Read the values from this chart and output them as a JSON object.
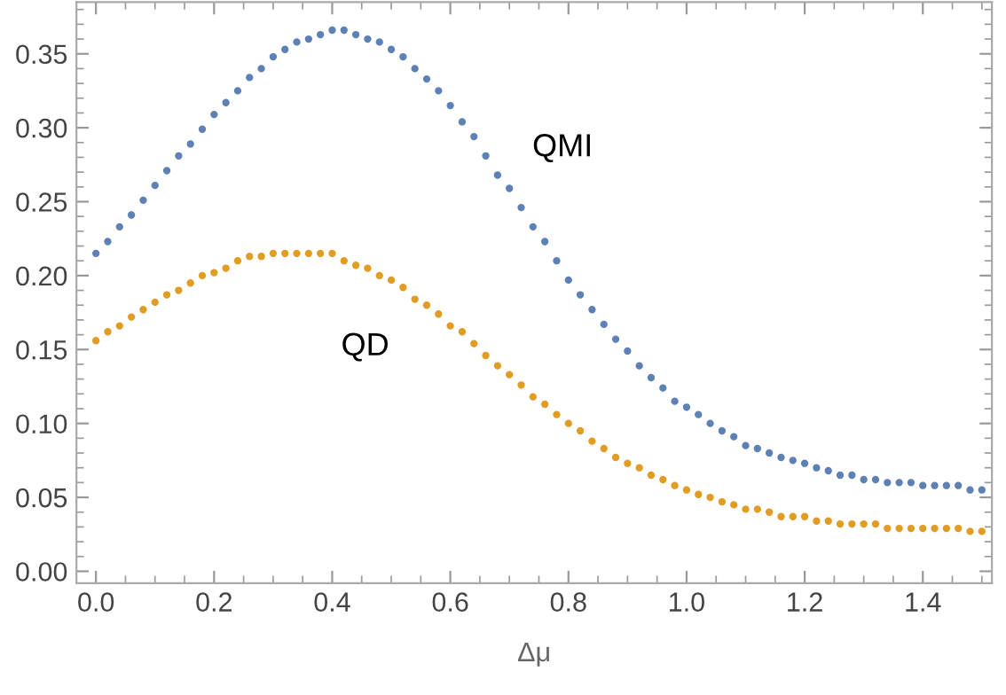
{
  "chart_data": {
    "type": "scatter",
    "xlabel": "Δμ",
    "x": [
      0,
      0.02,
      0.04,
      0.06,
      0.08,
      0.1,
      0.12,
      0.14,
      0.16,
      0.18,
      0.2,
      0.22,
      0.24,
      0.26,
      0.28,
      0.3,
      0.32,
      0.34,
      0.36,
      0.38,
      0.4,
      0.42,
      0.44,
      0.46,
      0.48,
      0.5,
      0.52,
      0.54,
      0.56,
      0.58,
      0.6,
      0.62,
      0.64,
      0.66,
      0.68,
      0.7,
      0.72,
      0.74,
      0.76,
      0.78,
      0.8,
      0.82,
      0.84,
      0.86,
      0.88,
      0.9,
      0.92,
      0.94,
      0.96,
      0.98,
      1.0,
      1.02,
      1.04,
      1.06,
      1.08,
      1.1,
      1.12,
      1.14,
      1.16,
      1.18,
      1.2,
      1.22,
      1.24,
      1.26,
      1.28,
      1.3,
      1.32,
      1.34,
      1.36,
      1.38,
      1.4,
      1.42,
      1.44,
      1.46,
      1.48,
      1.5
    ],
    "series": [
      {
        "name": "QMI",
        "color": "#5e81b5",
        "values": [
          0.215,
          0.223,
          0.233,
          0.241,
          0.251,
          0.261,
          0.271,
          0.281,
          0.289,
          0.299,
          0.309,
          0.317,
          0.325,
          0.334,
          0.34,
          0.348,
          0.353,
          0.358,
          0.36,
          0.363,
          0.366,
          0.366,
          0.363,
          0.36,
          0.358,
          0.353,
          0.348,
          0.34,
          0.333,
          0.325,
          0.315,
          0.304,
          0.294,
          0.281,
          0.268,
          0.259,
          0.246,
          0.233,
          0.223,
          0.21,
          0.197,
          0.187,
          0.177,
          0.167,
          0.157,
          0.149,
          0.139,
          0.131,
          0.124,
          0.115,
          0.111,
          0.106,
          0.1,
          0.095,
          0.091,
          0.085,
          0.083,
          0.08,
          0.077,
          0.075,
          0.073,
          0.07,
          0.068,
          0.065,
          0.065,
          0.062,
          0.062,
          0.06,
          0.06,
          0.06,
          0.058,
          0.058,
          0.058,
          0.058,
          0.055,
          0.055
        ]
      },
      {
        "name": "QD",
        "color": "#e19c24",
        "values": [
          0.156,
          0.162,
          0.166,
          0.172,
          0.177,
          0.182,
          0.187,
          0.19,
          0.195,
          0.2,
          0.202,
          0.205,
          0.21,
          0.213,
          0.213,
          0.215,
          0.215,
          0.215,
          0.215,
          0.215,
          0.215,
          0.21,
          0.207,
          0.205,
          0.2,
          0.197,
          0.192,
          0.184,
          0.18,
          0.174,
          0.166,
          0.162,
          0.154,
          0.146,
          0.139,
          0.133,
          0.126,
          0.118,
          0.113,
          0.106,
          0.1,
          0.095,
          0.088,
          0.083,
          0.077,
          0.073,
          0.07,
          0.065,
          0.062,
          0.058,
          0.055,
          0.052,
          0.05,
          0.047,
          0.045,
          0.042,
          0.042,
          0.04,
          0.037,
          0.037,
          0.037,
          0.034,
          0.034,
          0.032,
          0.032,
          0.032,
          0.032,
          0.029,
          0.029,
          0.029,
          0.029,
          0.029,
          0.029,
          0.029,
          0.027,
          0.027
        ]
      }
    ],
    "xlim": [
      -0.033,
      1.517
    ],
    "ylim": [
      -0.008,
      0.385
    ],
    "xticks": [
      {
        "value": 0,
        "label": "0.0"
      },
      0.2,
      0.4,
      0.6,
      0.8,
      {
        "value": 1,
        "label": "1.0"
      },
      1.2,
      1.4
    ],
    "yticks": [
      {
        "value": 0,
        "label": "0.00"
      },
      0.05,
      {
        "value": 0.1,
        "label": "0.10"
      },
      0.15,
      {
        "value": 0.2,
        "label": "0.20"
      },
      0.25,
      {
        "value": 0.3,
        "label": "0.30"
      },
      0.35
    ],
    "marker": "circle",
    "grid": false,
    "legend": false
  }
}
